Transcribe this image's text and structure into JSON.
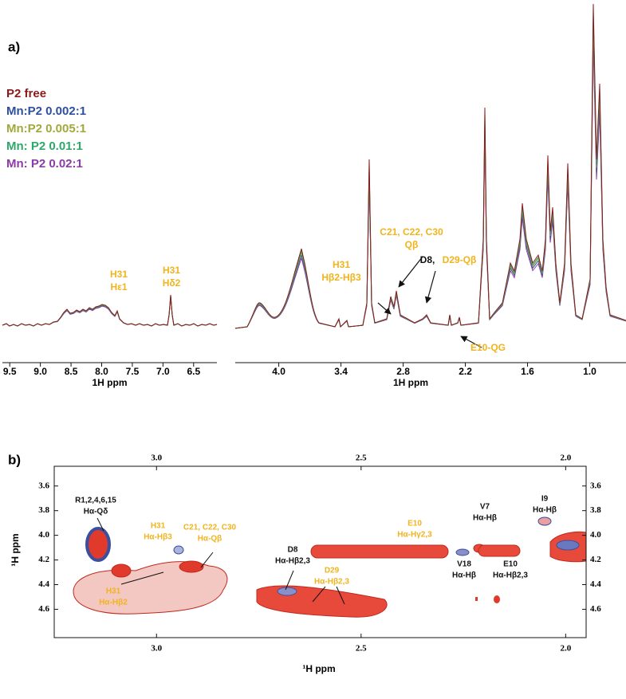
{
  "panel_a": {
    "label": "a)",
    "legend": [
      "P2 free",
      "Mn:P2  0.002:1",
      "Mn:P2  0.005:1",
      "Mn: P2 0.01:1",
      "Mn: P2 0.02:1"
    ],
    "legend_colors": [
      "#8b1a1a",
      "#2e4fa0",
      "#a3a83a",
      "#2ea86a",
      "#8e3aa8"
    ],
    "x_label_left": "1H ppm",
    "x_label_right": "1H ppm",
    "left_axis": {
      "xlim": [
        9.62,
        6.12
      ],
      "xticks": [
        9.5,
        {
          "value": 9,
          "label": "9.0"
        },
        8.5,
        {
          "value": 8,
          "label": "8.0"
        },
        7.5,
        {
          "value": 7,
          "label": "7.0"
        },
        6.5
      ]
    },
    "right_axis": {
      "xlim": [
        4.42,
        0.65
      ],
      "xticks": [
        {
          "value": 4,
          "label": "4.0"
        },
        3.4,
        2.8,
        2.2,
        1.6,
        {
          "value": 1,
          "label": "1.0"
        }
      ]
    },
    "annotations": [
      {
        "lines": [
          "H31",
          "Hε1"
        ],
        "color": "#f2b31c"
      },
      {
        "lines": [
          "H31",
          "Hδ2"
        ],
        "color": "#f2b31c"
      },
      {
        "lines": [
          "H31",
          "Hβ2-Hβ3"
        ],
        "color": "#f2b31c"
      },
      {
        "lines": [
          "C21, C22, C30",
          "Qβ"
        ],
        "color": "#f2b31c"
      },
      {
        "lines": [
          "D8,"
        ],
        "color": "#111111"
      },
      {
        "lines": [
          "D29-Qβ"
        ],
        "color": "#f2b31c"
      },
      {
        "lines": [
          "E10-QG"
        ],
        "color": "#f2b31c"
      }
    ]
  },
  "panel_b": {
    "label": "b)",
    "x_label": "¹H ppm",
    "y_label": "¹H ppm",
    "xlim": [
      3.25,
      1.95
    ],
    "xticks": [
      {
        "value": 3,
        "label": "3.0"
      },
      2.5,
      {
        "value": 2,
        "label": "2.0"
      }
    ],
    "ylim": [
      3.44,
      4.83
    ],
    "yticks": [
      3.6,
      3.8,
      {
        "value": 4,
        "label": "4.0"
      },
      4.2,
      4.4,
      4.6
    ],
    "annotations": [
      {
        "lines": [
          "R1,2,4,6,15",
          "Hα-Qδ"
        ],
        "color": "#111111"
      },
      {
        "lines": [
          "H31",
          "Hα-Hβ2"
        ],
        "color": "#f2b31c"
      },
      {
        "lines": [
          "H31",
          "Hα-Hβ3"
        ],
        "color": "#f2b31c"
      },
      {
        "lines": [
          "C21, C22, C30",
          "Hα-Qβ"
        ],
        "color": "#f2b31c"
      },
      {
        "lines": [
          "D8",
          "Hα-Hβ2,3"
        ],
        "color": "#111111"
      },
      {
        "lines": [
          "D29",
          "Hα-Hβ2,3"
        ],
        "color": "#f2b31c"
      },
      {
        "lines": [
          "E10",
          "Hα-Hγ2,3"
        ],
        "color": "#f2b31c"
      },
      {
        "lines": [
          "V7",
          "Hα-Hβ"
        ],
        "color": "#111111"
      },
      {
        "lines": [
          "V18",
          "Hα-Hβ"
        ],
        "color": "#111111"
      },
      {
        "lines": [
          "E10",
          "Hα-Hβ2,3"
        ],
        "color": "#111111"
      },
      {
        "lines": [
          "I9",
          "Hα-Hβ"
        ],
        "color": "#111111"
      }
    ]
  }
}
